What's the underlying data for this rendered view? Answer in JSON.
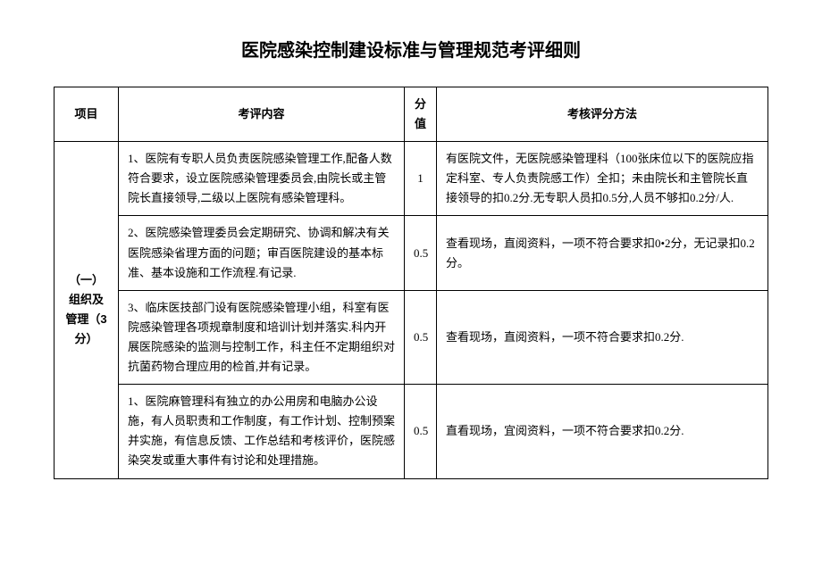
{
  "title": "医院感染控制建设标准与管理规范考评细则",
  "headers": {
    "project": "项目",
    "content": "考评内容",
    "score": "分值",
    "method": "考核评分方法"
  },
  "section_label": "（一）组织及管理（3分）",
  "rows": [
    {
      "content": "1、医院有专职人员负责医院感染管理工作,配备人数符合要求，设立医院感染管理委员会,由院长或主管院长直接领导,二级以上医院有感染管理科。",
      "score": "1",
      "method": "有医院文件，无医院感染管理科（100张床位以下的医院应指定科室、专人负责院感工作）全扣；未由院长和主管院长直接领导的扣0.2分.无专职人员扣0.5分,人员不够扣0.2分/人."
    },
    {
      "content": "2、医院感染管理委员会定期研究、协调和解决有关医院感染省理方面的问题；审百医院建设的基本标准、基本设施和工作流程.有记录.",
      "score": "0.5",
      "method": "查看现场，直阅资料，一项不符合要求扣0•2分，无记录扣0.2分。"
    },
    {
      "content": "3、临床医技部门设有医院感染管理小组，科室有医院感染管理各项规章制度和培训计划并落实.科内开展医院感染的监测与控制工作，科主任不定期组织对抗菌药物合理应用的检首,并有记录。",
      "score": "0.5",
      "method": "查看现场，直阅资料，一项不符合要求扣0.2分."
    },
    {
      "content": "1、医院麻管理科有独立的办公用房和电脑办公设施，有人员职责和工作制度，有工作计划、控制预案并实施，有信息反馈、工作总结和考核评价，医院感染突发或重大事件有讨论和处理措施。",
      "score": "0.5",
      "method": "直看现场，宜阅资料，一项不符合要求扣0.2分."
    }
  ]
}
